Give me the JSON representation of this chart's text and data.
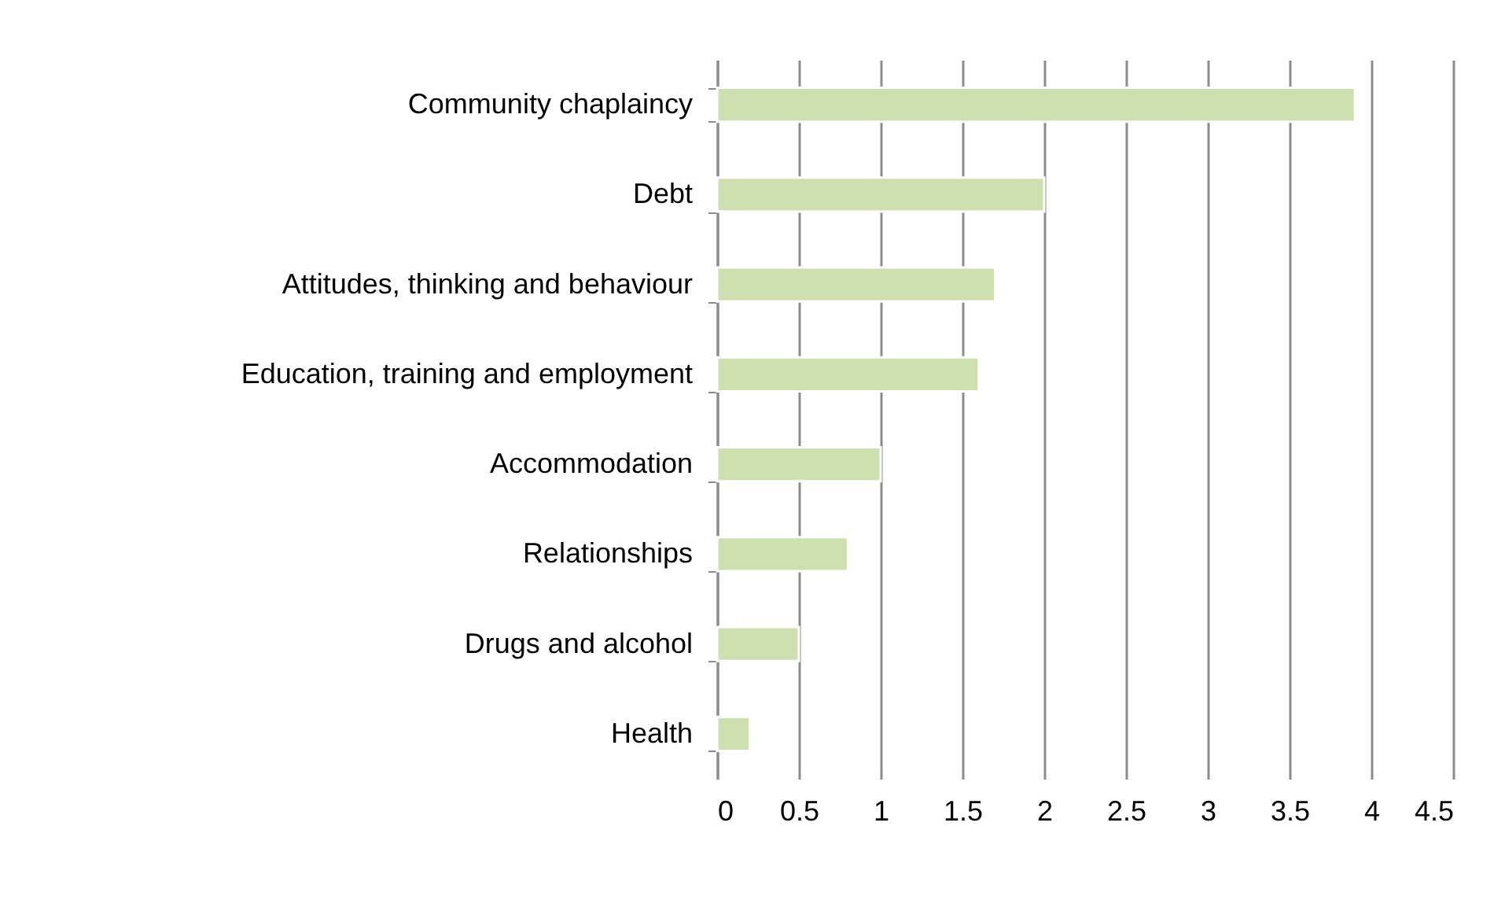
{
  "chart_data": {
    "type": "bar",
    "orientation": "horizontal",
    "categories": [
      "Community chaplaincy",
      "Debt",
      "Attitudes, thinking and behaviour",
      "Education, training and employment",
      "Accommodation",
      "Relationships",
      "Drugs and alcohol",
      "Health"
    ],
    "values": [
      3.9,
      2,
      1.7,
      1.6,
      1,
      0.8,
      0.5,
      0.2
    ],
    "color": "#cfe0b0",
    "xlim": [
      0,
      4.5
    ],
    "xticks": [
      0,
      0.5,
      1,
      1.5,
      2,
      2.5,
      3,
      3.5,
      4,
      4.5
    ],
    "grid": "x"
  }
}
